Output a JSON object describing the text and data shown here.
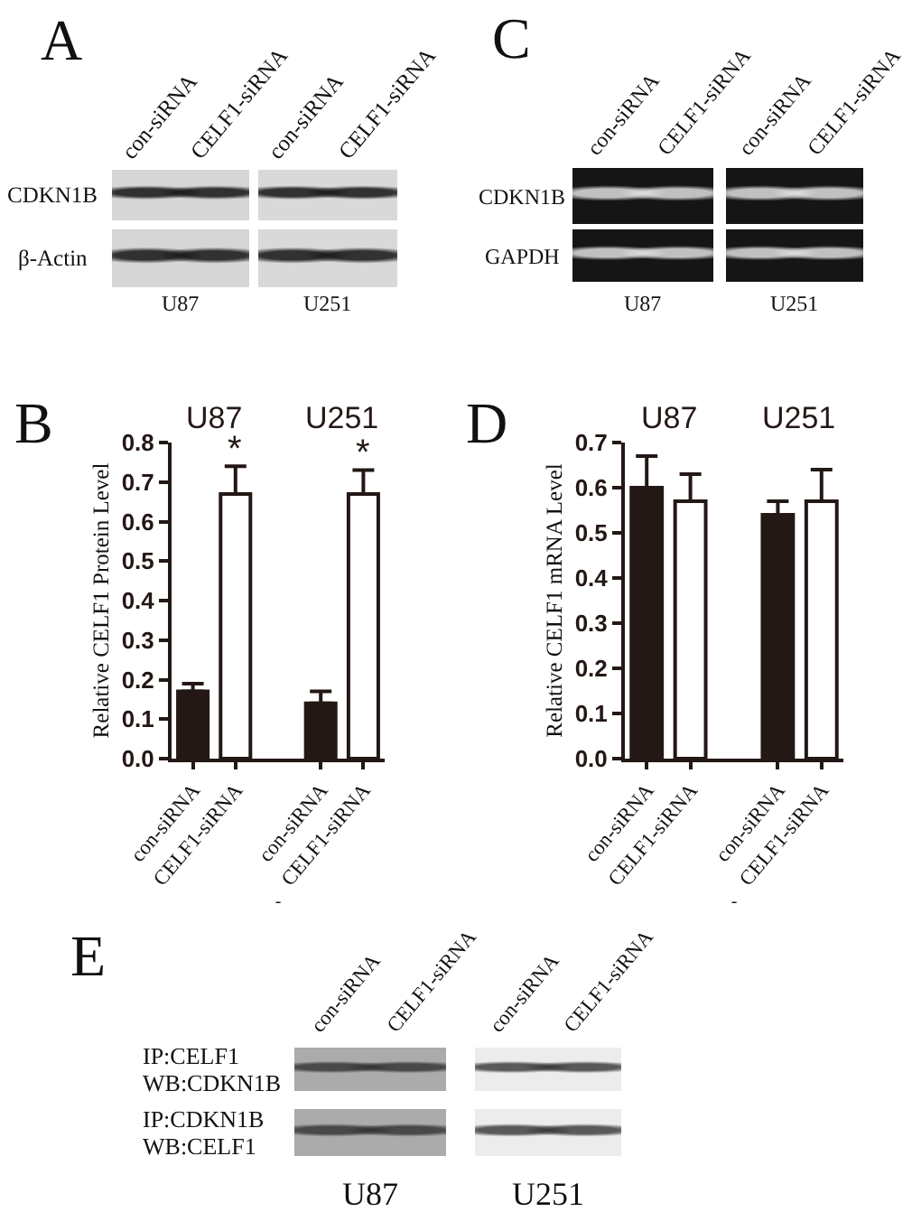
{
  "chart_data": [
    {
      "type": "other",
      "title": "A",
      "categories": [
        "con-siRNA",
        "CELF1-siRNA",
        "con-siRNA",
        "CELF1-siRNA"
      ],
      "y_categories": [
        "CDKN1B",
        "β-Actin"
      ],
      "annotations": [
        "U87",
        "U251"
      ]
    },
    {
      "type": "other",
      "title": "C",
      "categories": [
        "con-siRNA",
        "CELF1-siRNA",
        "con-siRNA",
        "CELF1-siRNA"
      ],
      "y_categories": [
        "CDKN1B",
        "GAPDH"
      ],
      "annotations": [
        "U87",
        "U251"
      ]
    },
    {
      "type": "bar",
      "title": "B",
      "categories": [
        "con-siRNA",
        "CELF1-siRNA",
        null,
        "con-siRNA",
        "CELF1-siRNA"
      ],
      "values": [
        0.17,
        0.67,
        null,
        0.14,
        0.67
      ],
      "colors": [
        "#231815",
        "#ffffff",
        null,
        "#231815",
        "#ffffff"
      ],
      "errors": [
        [
          0.17,
          0.19
        ],
        [
          0.67,
          0.74
        ],
        null,
        [
          0.14,
          0.17
        ],
        [
          0.67,
          0.73
        ]
      ],
      "value_labels": [
        null,
        "*",
        null,
        null,
        "*"
      ],
      "annotations": [
        "U87",
        "U251"
      ],
      "xlabel": "-",
      "ylabel": "Relative CELF1 Protein Level",
      "ylim": [
        0,
        0.8
      ],
      "yticks": [
        {
          "value": 0,
          "label": "0.0"
        },
        0.1,
        0.2,
        0.3,
        0.4,
        0.5,
        0.6,
        0.7,
        0.8
      ]
    },
    {
      "type": "bar",
      "title": "D",
      "categories": [
        "con-siRNA",
        "CELF1-siRNA",
        null,
        "con-siRNA",
        "CELF1-siRNA"
      ],
      "values": [
        0.6,
        0.57,
        null,
        0.54,
        0.57
      ],
      "colors": [
        "#231815",
        "#ffffff",
        null,
        "#231815",
        "#ffffff"
      ],
      "errors": [
        [
          0.6,
          0.67
        ],
        [
          0.57,
          0.63
        ],
        null,
        [
          0.54,
          0.57
        ],
        [
          0.57,
          0.64
        ]
      ],
      "annotations": [
        "U87",
        "U251"
      ],
      "xlabel": "-",
      "ylabel": "Relative CELF1 mRNA Level",
      "ylim": [
        0,
        0.7
      ],
      "yticks": [
        {
          "value": 0,
          "label": "0.0"
        },
        0.1,
        0.2,
        0.3,
        0.4,
        0.5,
        0.6,
        0.7
      ]
    },
    {
      "type": "other",
      "title": "E",
      "categories": [
        "con-siRNA",
        "CELF1-siRNA",
        "con-siRNA",
        "CELF1-siRNA"
      ],
      "y_categories": [
        "IP:CELF1\nWB:CDKN1B",
        "IP:CDKN1B\nWB:CELF1"
      ],
      "annotations": [
        "U87",
        "U251"
      ]
    }
  ]
}
